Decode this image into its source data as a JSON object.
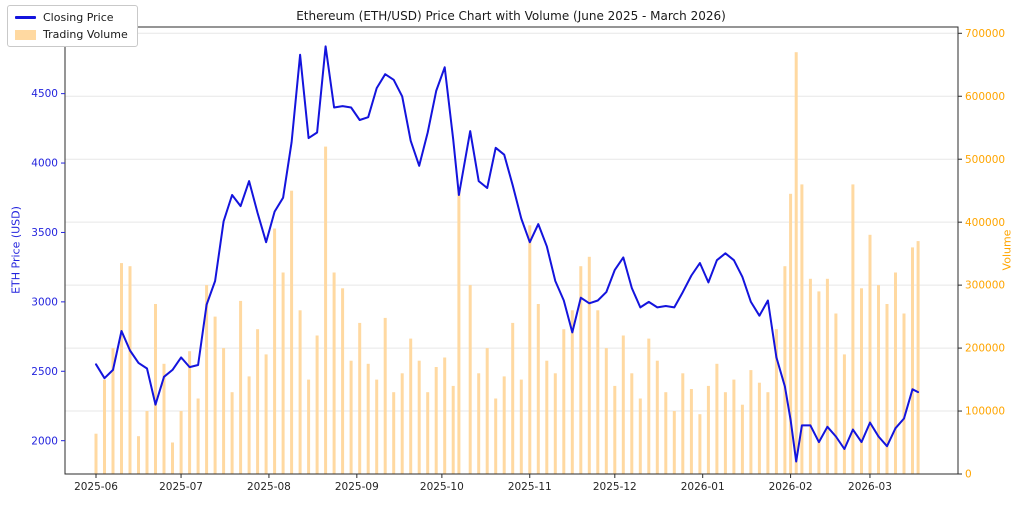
{
  "figure": {
    "title": "Ethereum (ETH/USD) Price Chart with Volume (June 2025 - March 2026)",
    "legend": [
      {
        "label": "Closing Price",
        "swatch": "line-swatch"
      },
      {
        "label": "Trading Volume",
        "swatch": "patch-swatch"
      }
    ]
  },
  "chart_data": {
    "type": "line+bar",
    "title": "Ethereum (ETH/USD) Price Chart with Volume (June 2025 - March 2026)",
    "grid": "horizontal",
    "legend_position": "upper-left-outside",
    "line_color": "#1414dd",
    "volume_color": "#ffd9a1",
    "price_axis": {
      "label": "ETH Price (USD)",
      "color": "#2424dd",
      "ticks": [
        2000,
        2500,
        3000,
        3500,
        4000,
        4500
      ],
      "range": [
        1760,
        4980
      ]
    },
    "volume_axis": {
      "label": "Volume",
      "color": "#ffa500",
      "ticks": [
        0,
        100000,
        200000,
        300000,
        400000,
        500000,
        600000,
        700000
      ],
      "range": [
        0,
        710000
      ]
    },
    "x_axis": {
      "tick_labels": [
        "2025-06",
        "2025-07",
        "2025-08",
        "2025-09",
        "2025-10",
        "2025-11",
        "2025-12",
        "2026-01",
        "2026-02",
        "2026-03"
      ],
      "color": "#262626"
    },
    "dates": [
      "2025-06-01",
      "2025-06-04",
      "2025-06-07",
      "2025-06-10",
      "2025-06-13",
      "2025-06-16",
      "2025-06-19",
      "2025-06-22",
      "2025-06-25",
      "2025-06-28",
      "2025-07-01",
      "2025-07-04",
      "2025-07-07",
      "2025-07-10",
      "2025-07-13",
      "2025-07-16",
      "2025-07-19",
      "2025-07-22",
      "2025-07-25",
      "2025-07-28",
      "2025-07-31",
      "2025-08-03",
      "2025-08-06",
      "2025-08-09",
      "2025-08-12",
      "2025-08-15",
      "2025-08-18",
      "2025-08-21",
      "2025-08-24",
      "2025-08-27",
      "2025-08-30",
      "2025-09-02",
      "2025-09-05",
      "2025-09-08",
      "2025-09-11",
      "2025-09-14",
      "2025-09-17",
      "2025-09-20",
      "2025-09-23",
      "2025-09-26",
      "2025-09-29",
      "2025-10-02",
      "2025-10-05",
      "2025-10-07",
      "2025-10-11",
      "2025-10-14",
      "2025-10-17",
      "2025-10-20",
      "2025-10-23",
      "2025-10-26",
      "2025-10-29",
      "2025-11-01",
      "2025-11-04",
      "2025-11-07",
      "2025-11-10",
      "2025-11-13",
      "2025-11-16",
      "2025-11-19",
      "2025-11-22",
      "2025-11-25",
      "2025-11-28",
      "2025-12-01",
      "2025-12-04",
      "2025-12-07",
      "2025-12-10",
      "2025-12-13",
      "2025-12-16",
      "2025-12-19",
      "2025-12-22",
      "2025-12-25",
      "2025-12-28",
      "2025-12-31",
      "2026-01-03",
      "2026-01-06",
      "2026-01-09",
      "2026-01-12",
      "2026-01-15",
      "2026-01-18",
      "2026-01-21",
      "2026-01-24",
      "2026-01-27",
      "2026-01-30",
      "2026-02-01",
      "2026-02-03",
      "2026-02-05",
      "2026-02-08",
      "2026-02-11",
      "2026-02-14",
      "2026-02-17",
      "2026-02-20",
      "2026-02-23",
      "2026-02-26",
      "2026-03-01",
      "2026-03-04",
      "2026-03-07",
      "2026-03-10",
      "2026-03-13",
      "2026-03-16",
      "2026-03-18"
    ],
    "close": [
      2550,
      2450,
      2510,
      2790,
      2650,
      2560,
      2520,
      2260,
      2460,
      2510,
      2600,
      2530,
      2545,
      2980,
      3150,
      3580,
      3770,
      3690,
      3870,
      3640,
      3430,
      3650,
      3750,
      4150,
      4780,
      4180,
      4220,
      4840,
      4400,
      4410,
      4400,
      4310,
      4330,
      4540,
      4640,
      4600,
      4480,
      4160,
      3980,
      4220,
      4520,
      4690,
      4170,
      3770,
      4230,
      3870,
      3820,
      4110,
      4060,
      3840,
      3600,
      3430,
      3560,
      3400,
      3150,
      3010,
      2780,
      3030,
      2990,
      3010,
      3070,
      3230,
      3320,
      3100,
      2960,
      3000,
      2960,
      2970,
      2960,
      3070,
      3190,
      3280,
      3140,
      3300,
      3350,
      3300,
      3180,
      3000,
      2900,
      3010,
      2600,
      2390,
      2150,
      1850,
      2110,
      2110,
      1990,
      2100,
      2030,
      1940,
      2080,
      1990,
      2130,
      2030,
      1960,
      2090,
      2160,
      2370,
      2350
    ],
    "volume": [
      64000,
      150000,
      200000,
      335000,
      330000,
      60000,
      100000,
      270000,
      175000,
      50000,
      100000,
      195000,
      120000,
      300000,
      250000,
      200000,
      130000,
      275000,
      155000,
      230000,
      190000,
      390000,
      320000,
      450000,
      260000,
      150000,
      220000,
      520000,
      320000,
      295000,
      180000,
      240000,
      175000,
      150000,
      248000,
      130000,
      160000,
      215000,
      180000,
      130000,
      170000,
      185000,
      140000,
      455000,
      300000,
      160000,
      200000,
      120000,
      155000,
      240000,
      150000,
      395000,
      270000,
      180000,
      160000,
      230000,
      260000,
      330000,
      345000,
      260000,
      200000,
      140000,
      220000,
      160000,
      120000,
      215000,
      180000,
      130000,
      100000,
      160000,
      135000,
      95000,
      140000,
      175000,
      130000,
      150000,
      110000,
      165000,
      145000,
      130000,
      230000,
      330000,
      445000,
      670000,
      460000,
      310000,
      290000,
      310000,
      255000,
      190000,
      460000,
      295000,
      380000,
      300000,
      270000,
      320000,
      255000,
      360000,
      370000
    ]
  }
}
